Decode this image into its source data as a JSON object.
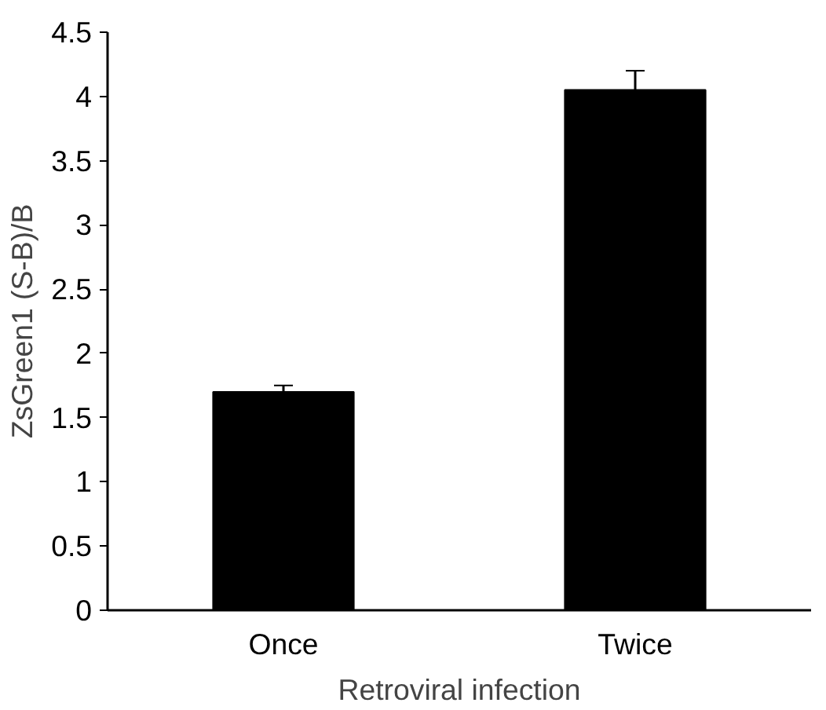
{
  "chart_data": {
    "type": "bar",
    "xlabel": "Retroviral infection",
    "ylabel": "ZsGreen1 (S-B)/B",
    "categories": [
      "Once",
      "Twice"
    ],
    "values": [
      1.7,
      4.05
    ],
    "color": "#000000",
    "errors": [
      0.05,
      0.15
    ],
    "ylim": [
      0,
      4.5
    ],
    "yticks": [
      0,
      0.5,
      1,
      1.5,
      2,
      2.5,
      3,
      3.5,
      4,
      4.5
    ],
    "grid": false
  }
}
